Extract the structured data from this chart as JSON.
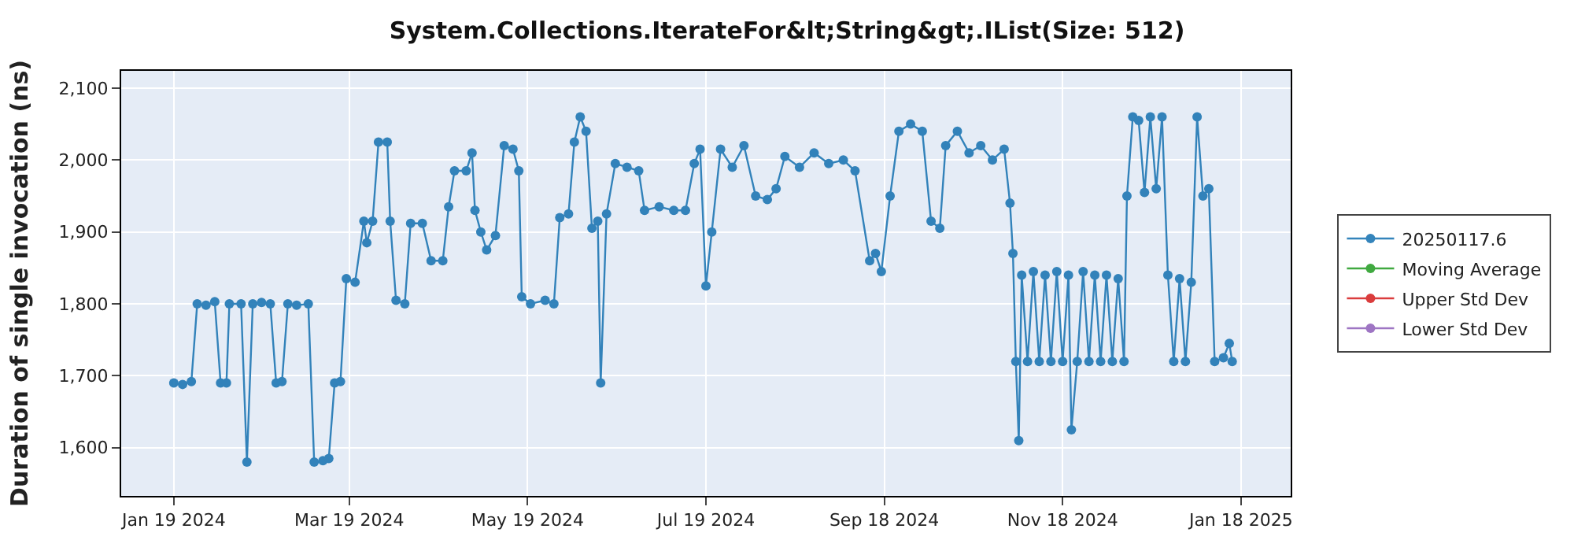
{
  "chart_data": {
    "type": "line",
    "title": "System.Collections.IterateFor&lt;String&gt;.IList(Size: 512)",
    "ylabel": "Duration of single invocation (ns)",
    "x": [
      "2024-01-19",
      "2024-01-22",
      "2024-01-25",
      "2024-01-27",
      "2024-01-30",
      "2024-02-02",
      "2024-02-04",
      "2024-02-06",
      "2024-02-07",
      "2024-02-11",
      "2024-02-13",
      "2024-02-15",
      "2024-02-18",
      "2024-02-21",
      "2024-02-23",
      "2024-02-25",
      "2024-02-27",
      "2024-03-01",
      "2024-03-05",
      "2024-03-07",
      "2024-03-10",
      "2024-03-12",
      "2024-03-14",
      "2024-03-16",
      "2024-03-18",
      "2024-03-21",
      "2024-03-24",
      "2024-03-25",
      "2024-03-27",
      "2024-03-29",
      "2024-04-01",
      "2024-04-02",
      "2024-04-04",
      "2024-04-07",
      "2024-04-09",
      "2024-04-13",
      "2024-04-16",
      "2024-04-20",
      "2024-04-22",
      "2024-04-24",
      "2024-04-28",
      "2024-04-30",
      "2024-05-01",
      "2024-05-03",
      "2024-05-05",
      "2024-05-08",
      "2024-05-11",
      "2024-05-14",
      "2024-05-16",
      "2024-05-17",
      "2024-05-20",
      "2024-05-25",
      "2024-05-28",
      "2024-05-30",
      "2024-06-02",
      "2024-06-04",
      "2024-06-06",
      "2024-06-08",
      "2024-06-10",
      "2024-06-12",
      "2024-06-13",
      "2024-06-15",
      "2024-06-18",
      "2024-06-22",
      "2024-06-26",
      "2024-06-28",
      "2024-07-03",
      "2024-07-08",
      "2024-07-12",
      "2024-07-15",
      "2024-07-17",
      "2024-07-19",
      "2024-07-21",
      "2024-07-24",
      "2024-07-28",
      "2024-08-01",
      "2024-08-05",
      "2024-08-09",
      "2024-08-12",
      "2024-08-15",
      "2024-08-20",
      "2024-08-25",
      "2024-08-30",
      "2024-09-04",
      "2024-09-08",
      "2024-09-13",
      "2024-09-15",
      "2024-09-17",
      "2024-09-20",
      "2024-09-23",
      "2024-09-27",
      "2024-10-01",
      "2024-10-04",
      "2024-10-07",
      "2024-10-09",
      "2024-10-13",
      "2024-10-17",
      "2024-10-21",
      "2024-10-25",
      "2024-10-29",
      "2024-10-31",
      "2024-11-01",
      "2024-11-02",
      "2024-11-03",
      "2024-11-04",
      "2024-11-06",
      "2024-11-08",
      "2024-11-10",
      "2024-11-12",
      "2024-11-14",
      "2024-11-16",
      "2024-11-18",
      "2024-11-20",
      "2024-11-21",
      "2024-11-23",
      "2024-11-25",
      "2024-11-27",
      "2024-11-29",
      "2024-12-01",
      "2024-12-03",
      "2024-12-05",
      "2024-12-07",
      "2024-12-09",
      "2024-12-10",
      "2024-12-12",
      "2024-12-14",
      "2024-12-16",
      "2024-12-18",
      "2024-12-20",
      "2024-12-22",
      "2024-12-24",
      "2024-12-26",
      "2024-12-28",
      "2024-12-30",
      "2025-01-01",
      "2025-01-03",
      "2025-01-05",
      "2025-01-07",
      "2025-01-09",
      "2025-01-12",
      "2025-01-14",
      "2025-01-15"
    ],
    "series": [
      {
        "name": "20250117.6",
        "color": "#1f77b4",
        "values": [
          1690,
          1688,
          1692,
          1800,
          1798,
          1803,
          1690,
          1690,
          1800,
          1800,
          1580,
          1800,
          1802,
          1800,
          1690,
          1692,
          1800,
          1798,
          1800,
          1580,
          1582,
          1585,
          1690,
          1692,
          1835,
          1830,
          1915,
          1885,
          1915,
          2025,
          2025,
          1915,
          1805,
          1800,
          1912,
          1912,
          1860,
          1860,
          1935,
          1985,
          1985,
          2010,
          1930,
          1900,
          1875,
          1895,
          2020,
          2015,
          1985,
          1810,
          1800,
          1805,
          1800,
          1920,
          1925,
          2025,
          2060,
          2040,
          1905,
          1915,
          1690,
          1925,
          1995,
          1990,
          1985,
          1930,
          1935,
          1930,
          1930,
          1995,
          2015,
          1825,
          1900,
          2015,
          1990,
          2020,
          1950,
          1945,
          1960,
          2005,
          1990,
          2010,
          1995,
          2000,
          1985,
          1860,
          1870,
          1845,
          1950,
          2040,
          2050,
          2040,
          1915,
          1905,
          2020,
          2040,
          2010,
          2020,
          2000,
          2015,
          1940,
          1870,
          1720,
          1610,
          1840,
          1720,
          1845,
          1720,
          1840,
          1720,
          1845,
          1720,
          1840,
          1625,
          1720,
          1845,
          1720,
          1840,
          1720,
          1840,
          1720,
          1835,
          1720,
          1950,
          2060,
          2055,
          1955,
          2060,
          1960,
          2060,
          1840,
          1720,
          1835,
          1720,
          1830,
          2060,
          1950,
          1960,
          1720,
          1725,
          1745,
          1720
        ]
      },
      {
        "name": "Moving Average",
        "color": "#2ca02c",
        "values": [
          null,
          null,
          null,
          null,
          null,
          null,
          null,
          null,
          null,
          null,
          null,
          null,
          null,
          null,
          null,
          null,
          null,
          null,
          null,
          null,
          null,
          null,
          null,
          null,
          null,
          null,
          null,
          null,
          null,
          null,
          null,
          null,
          null,
          null,
          null,
          null,
          null,
          null,
          null,
          null,
          null,
          null,
          null,
          null,
          null,
          null,
          null,
          null,
          null,
          null,
          null,
          null,
          null,
          null,
          null,
          null,
          null,
          null,
          null,
          null,
          null,
          null,
          null,
          null,
          null,
          null,
          null,
          null,
          null,
          null,
          null,
          null,
          null,
          null,
          null,
          null,
          null,
          null,
          null,
          null,
          null,
          null,
          null,
          null,
          null,
          null,
          null,
          null,
          null,
          null,
          null,
          null,
          null,
          null,
          null,
          null,
          null,
          null,
          null,
          null,
          null,
          null,
          null,
          null,
          null,
          null,
          null,
          null,
          null,
          null,
          null,
          null,
          null,
          null,
          null,
          null,
          null,
          null,
          null,
          null,
          null,
          null,
          null,
          null,
          null,
          null,
          null,
          null,
          null,
          null,
          null,
          null,
          null,
          null,
          null,
          null,
          null,
          null,
          null,
          null,
          null,
          null
        ]
      },
      {
        "name": "Upper Std Dev",
        "color": "#d62728",
        "values": [
          null,
          null,
          null,
          null,
          null,
          null,
          null,
          null,
          null,
          null,
          null,
          null,
          null,
          null,
          null,
          null,
          null,
          null,
          null,
          null,
          null,
          null,
          null,
          null,
          null,
          null,
          null,
          null,
          null,
          null,
          null,
          null,
          null,
          null,
          null,
          null,
          null,
          null,
          null,
          null,
          null,
          null,
          null,
          null,
          null,
          null,
          null,
          null,
          null,
          null,
          null,
          null,
          null,
          null,
          null,
          null,
          null,
          null,
          null,
          null,
          null,
          null,
          null,
          null,
          null,
          null,
          null,
          null,
          null,
          null,
          null,
          null,
          null,
          null,
          null,
          null,
          null,
          null,
          null,
          null,
          null,
          null,
          null,
          null,
          null,
          null,
          null,
          null,
          null,
          null,
          null,
          null,
          null,
          null,
          null,
          null,
          null,
          null,
          null,
          null,
          null,
          null,
          null,
          null,
          null,
          null,
          null,
          null,
          null,
          null,
          null,
          null,
          null,
          null,
          null,
          null,
          null,
          null,
          null,
          null,
          null,
          null,
          null,
          null,
          null,
          null,
          null,
          null,
          null,
          null,
          null,
          null,
          null,
          null,
          null,
          null,
          null,
          null,
          null,
          null,
          null,
          null
        ]
      },
      {
        "name": "Lower Std Dev",
        "color": "#9467bd",
        "values": [
          null,
          null,
          null,
          null,
          null,
          null,
          null,
          null,
          null,
          null,
          null,
          null,
          null,
          null,
          null,
          null,
          null,
          null,
          null,
          null,
          null,
          null,
          null,
          null,
          null,
          null,
          null,
          null,
          null,
          null,
          null,
          null,
          null,
          null,
          null,
          null,
          null,
          null,
          null,
          null,
          null,
          null,
          null,
          null,
          null,
          null,
          null,
          null,
          null,
          null,
          null,
          null,
          null,
          null,
          null,
          null,
          null,
          null,
          null,
          null,
          null,
          null,
          null,
          null,
          null,
          null,
          null,
          null,
          null,
          null,
          null,
          null,
          null,
          null,
          null,
          null,
          null,
          null,
          null,
          null,
          null,
          null,
          null,
          null,
          null,
          null,
          null,
          null,
          null,
          null,
          null,
          null,
          null,
          null,
          null,
          null,
          null,
          null,
          null,
          null,
          null,
          null,
          null,
          null,
          null,
          null,
          null,
          null,
          null,
          null,
          null,
          null,
          null,
          null,
          null,
          null,
          null,
          null,
          null,
          null,
          null,
          null,
          null,
          null,
          null,
          null,
          null,
          null,
          null,
          null,
          null,
          null,
          null,
          null,
          null,
          null,
          null,
          null,
          null,
          null,
          null,
          null
        ]
      }
    ],
    "xlim": [
      "2024-01-01",
      "2025-02-04"
    ],
    "xticks": [
      {
        "value": "2024-01-19",
        "label": "Jan 19 2024"
      },
      {
        "value": "2024-03-19",
        "label": "Mar 19 2024"
      },
      {
        "value": "2024-05-19",
        "label": "May 19 2024"
      },
      {
        "value": "2024-07-19",
        "label": "Jul 19 2024"
      },
      {
        "value": "2024-09-18",
        "label": "Sep 18 2024"
      },
      {
        "value": "2024-11-18",
        "label": "Nov 18 2024"
      },
      {
        "value": "2025-01-18",
        "label": "Jan 18 2025"
      }
    ],
    "ylim": [
      1533,
      2124
    ],
    "yticks": [
      {
        "value": 1600,
        "label": "1,600"
      },
      {
        "value": 1700,
        "label": "1,700"
      },
      {
        "value": 1800,
        "label": "1,800"
      },
      {
        "value": 1900,
        "label": "1,900"
      },
      {
        "value": 2000,
        "label": "2,000"
      },
      {
        "value": 2100,
        "label": "2,100"
      }
    ],
    "grid": true,
    "legend": "right",
    "marker": "circle",
    "line_style": "solid"
  }
}
